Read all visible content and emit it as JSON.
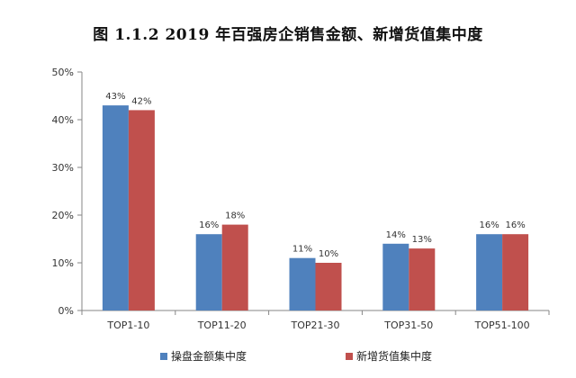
{
  "chart_data": {
    "type": "bar",
    "title": "图 1.1.2 2019 年百强房企销售金额、新增货值集中度",
    "xlabel": "",
    "ylabel": "",
    "categories": [
      "TOP1-10",
      "TOP11-20",
      "TOP21-30",
      "TOP31-50",
      "TOP51-100"
    ],
    "series": [
      {
        "name": "操盘金额集中度",
        "color": "#4f81bd",
        "values": [
          43,
          16,
          11,
          14,
          16
        ],
        "labels": [
          "43%",
          "16%",
          "11%",
          "14%",
          "16%"
        ]
      },
      {
        "name": "新增货值集中度",
        "color": "#c0504d",
        "values": [
          42,
          18,
          10,
          13,
          16
        ],
        "labels": [
          "42%",
          "18%",
          "10%",
          "13%",
          "16%"
        ]
      }
    ],
    "ylim": [
      0,
      50
    ],
    "yticks": [
      0,
      10,
      20,
      30,
      40,
      50
    ],
    "ytick_labels": [
      "0%",
      "10%",
      "20%",
      "30%",
      "40%",
      "50%"
    ],
    "grid": false,
    "legend_position": "bottom"
  }
}
